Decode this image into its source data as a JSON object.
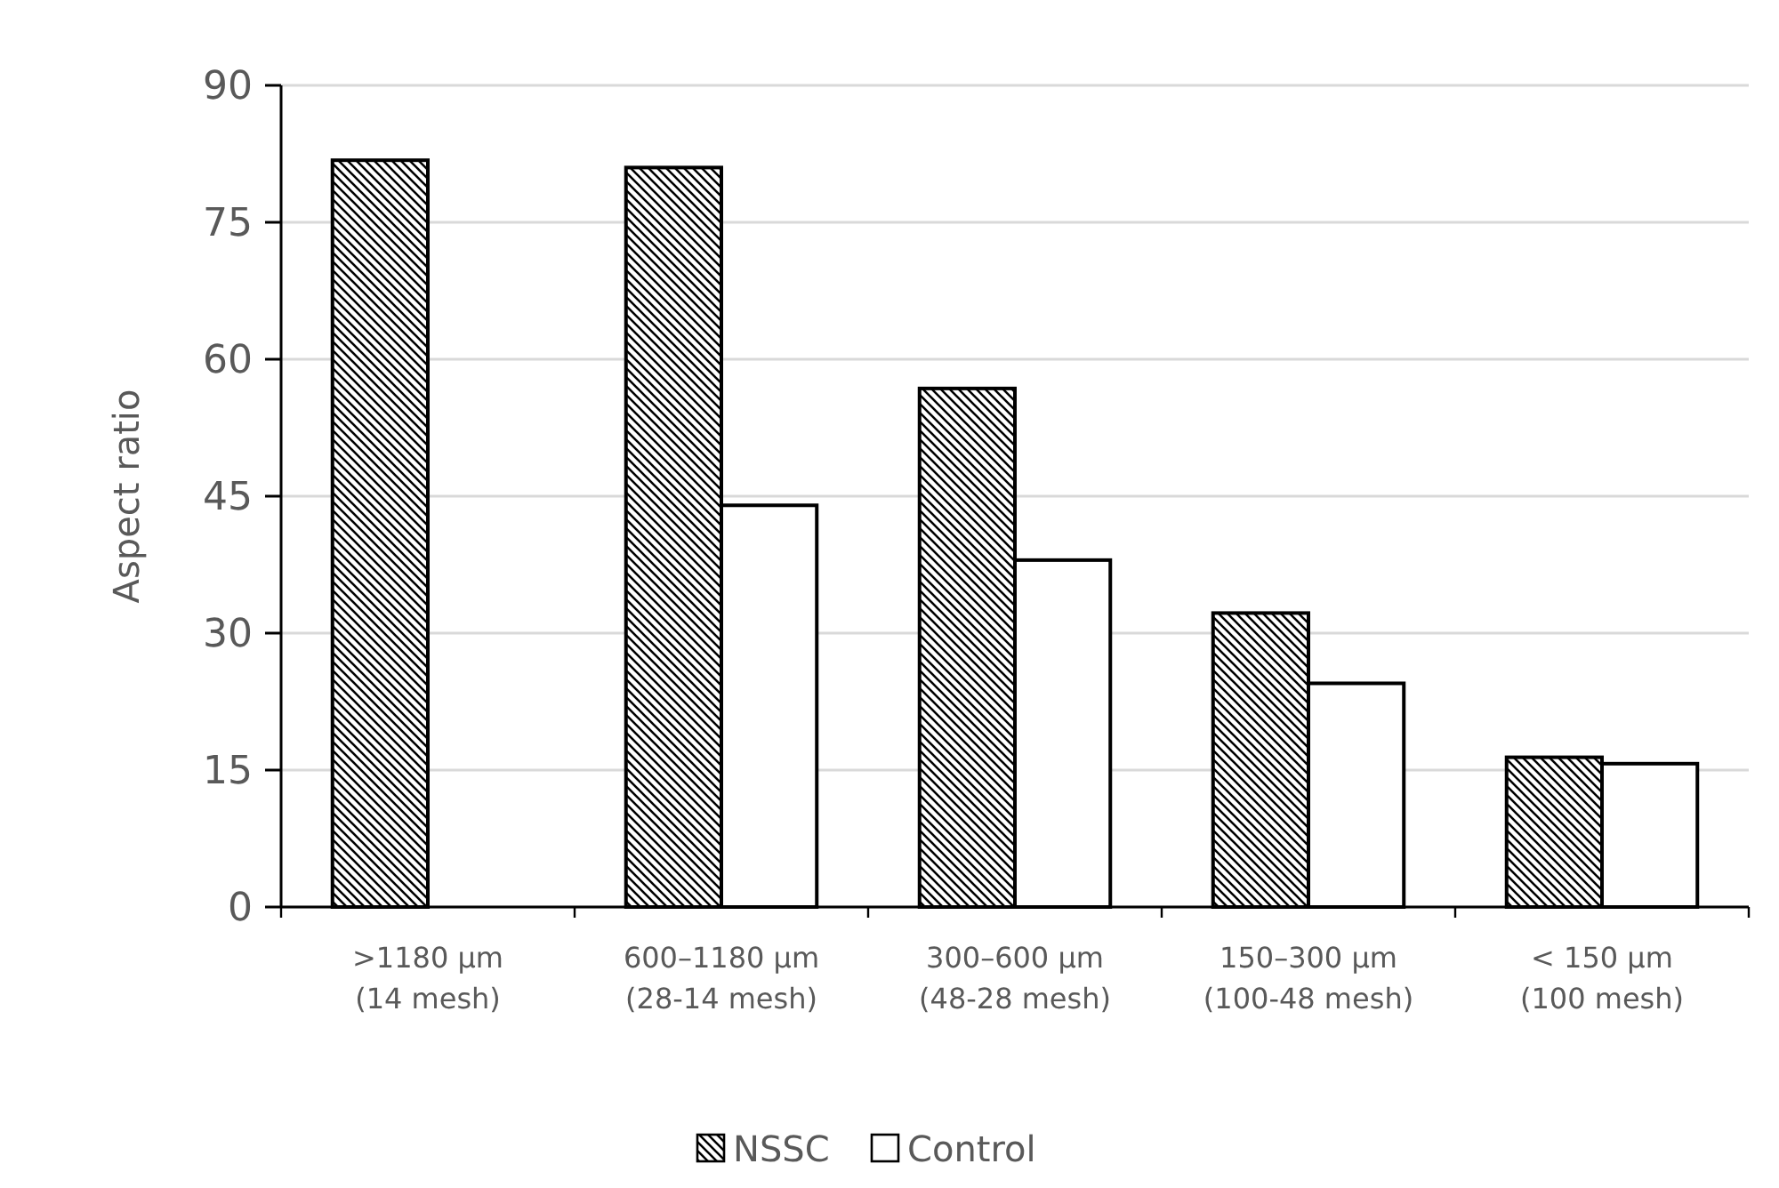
{
  "chart_data": {
    "type": "bar",
    "ylabel": "Aspect ratio",
    "categories": [
      ">1180 µm\n(14 mesh)",
      "600–1180 µm\n(28-14 mesh)",
      "300–600 µm\n(48-28 mesh)",
      "150–300 µm\n(100-48 mesh)",
      "< 150 µm\n(100 mesh)"
    ],
    "series": [
      {
        "name": "NSSC",
        "color": "#000000",
        "values": [
          81.8,
          81.0,
          56.8,
          32.2,
          16.4
        ]
      },
      {
        "name": "Control",
        "color": "#ffffff",
        "values": [
          null,
          44.0,
          38.0,
          24.5,
          15.7
        ]
      }
    ],
    "ylim": [
      0,
      90
    ],
    "yticks": [
      0,
      15,
      30,
      45,
      60,
      75,
      90
    ],
    "grid": "y",
    "legend": "bottom"
  }
}
